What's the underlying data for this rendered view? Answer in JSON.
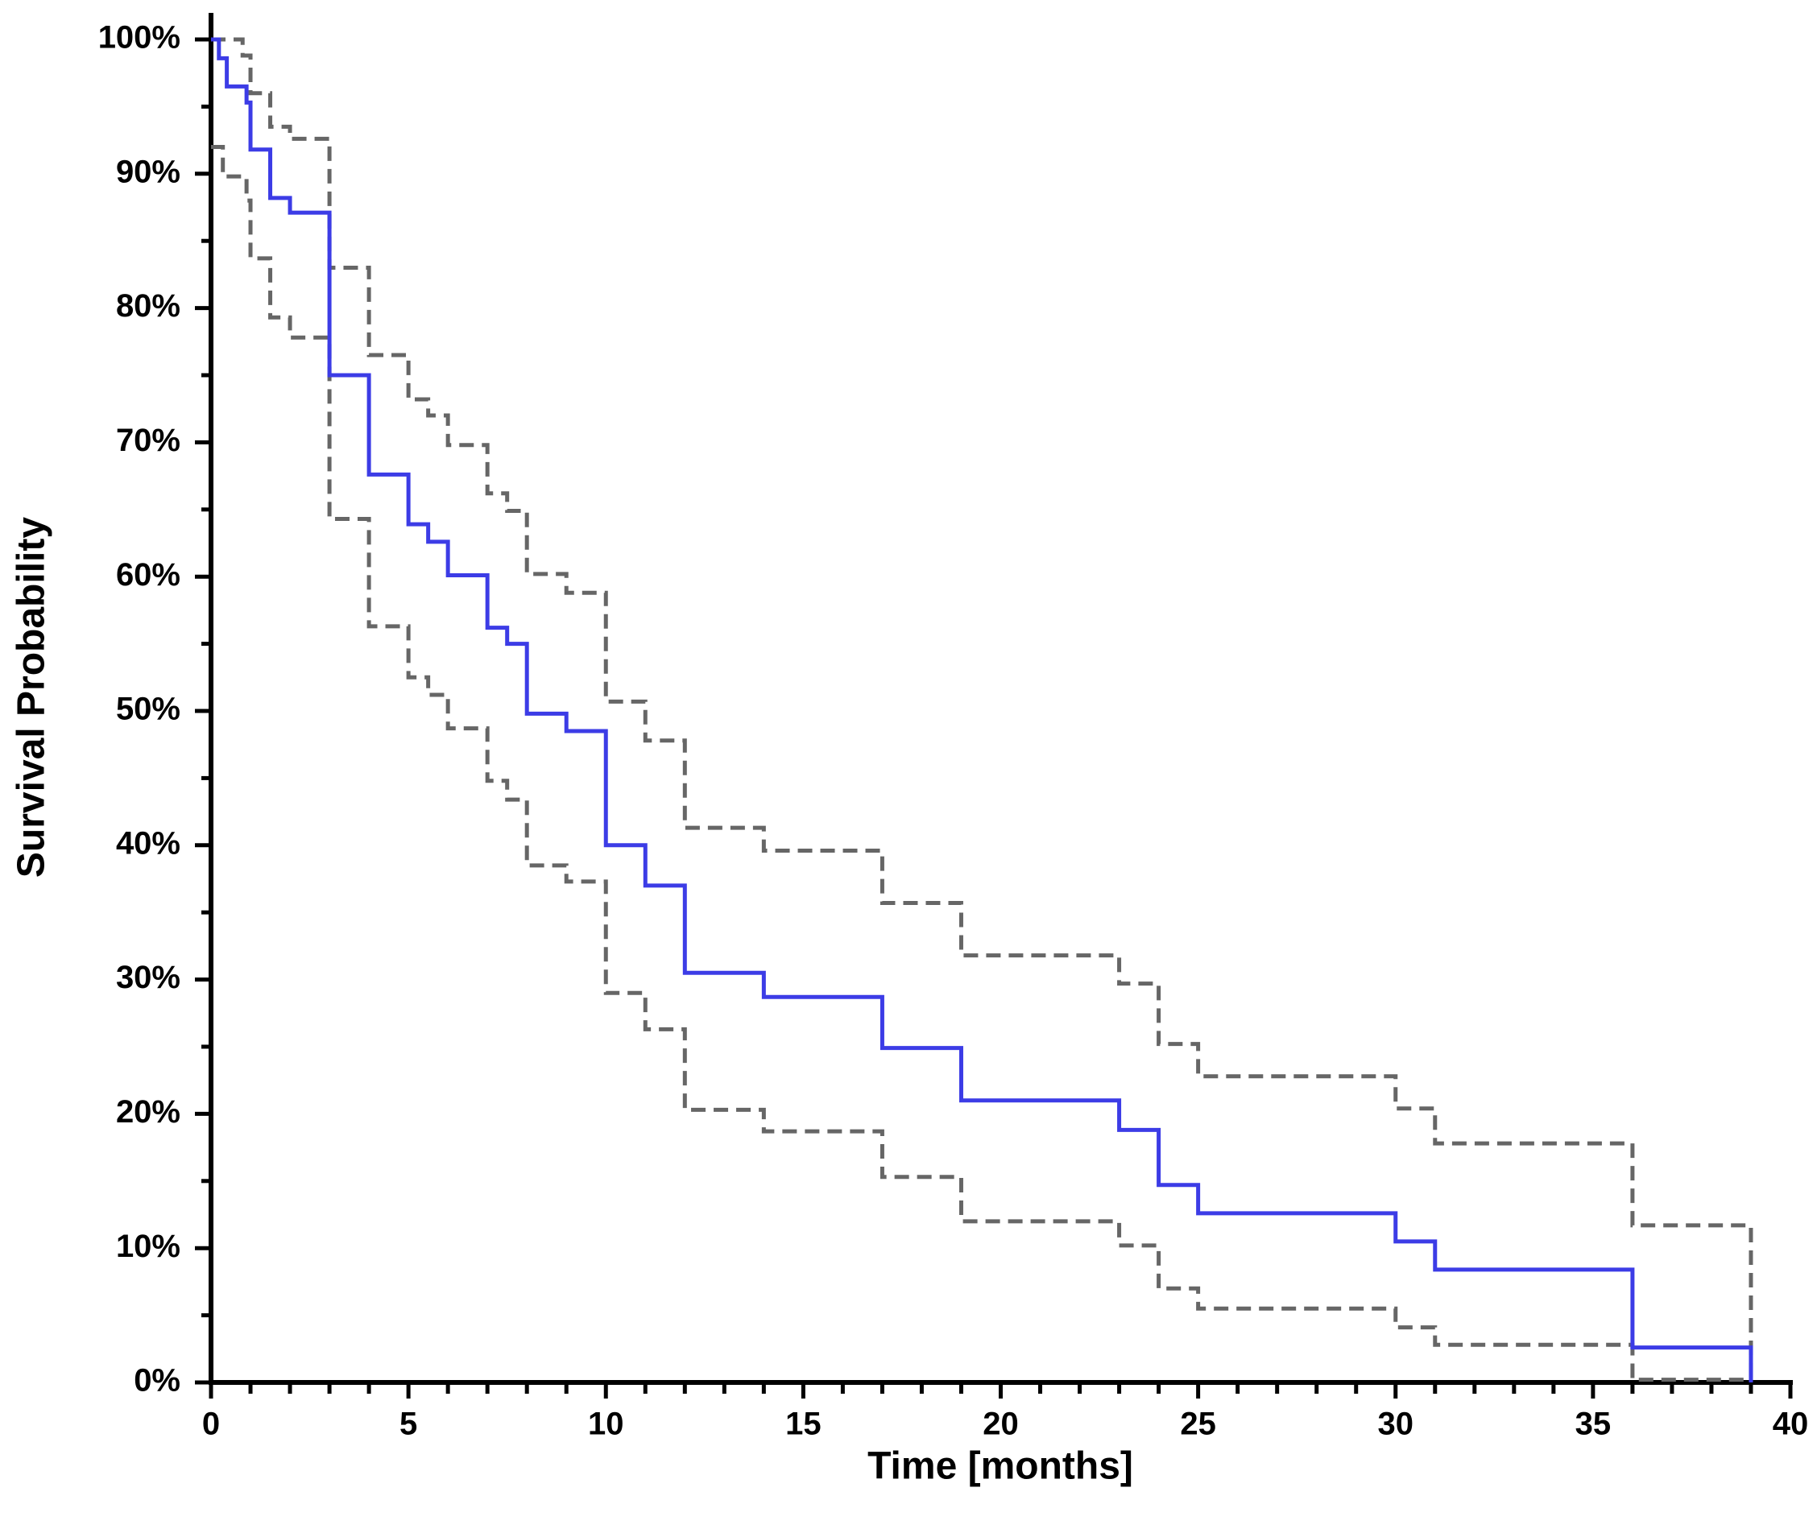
{
  "chart_data": {
    "type": "step",
    "x_label": "Time [months]",
    "y_label": "Survival Probability",
    "xlim": [
      0,
      40
    ],
    "ylim": [
      0,
      100
    ],
    "xticks": [
      0,
      5,
      10,
      15,
      20,
      25,
      30,
      35,
      40
    ],
    "xminorticks": [
      1,
      2,
      3,
      4,
      6,
      7,
      8,
      9,
      11,
      12,
      13,
      14,
      16,
      17,
      18,
      19,
      21,
      22,
      23,
      24,
      26,
      27,
      28,
      29,
      31,
      32,
      33,
      34,
      36,
      37,
      38,
      39
    ],
    "yticks": [
      {
        "value": 0,
        "label": "0%"
      },
      {
        "value": 10,
        "label": "10%"
      },
      {
        "value": 20,
        "label": "20%"
      },
      {
        "value": 30,
        "label": "30%"
      },
      {
        "value": 40,
        "label": "40%"
      },
      {
        "value": 50,
        "label": "50%"
      },
      {
        "value": 60,
        "label": "60%"
      },
      {
        "value": 70,
        "label": "70%"
      },
      {
        "value": 80,
        "label": "80%"
      },
      {
        "value": 90,
        "label": "90%"
      },
      {
        "value": 100,
        "label": "100%"
      }
    ],
    "yminorticks": [
      5,
      15,
      25,
      35,
      45,
      55,
      65,
      75,
      85,
      95
    ],
    "grid": false,
    "series": [
      {
        "color": "#3c3ce6",
        "dashed": false,
        "x": [
          0,
          0.2,
          0.4,
          0.9,
          1,
          1.5,
          2,
          3,
          4,
          5,
          5.5,
          6,
          7,
          7.5,
          8,
          9,
          10,
          11,
          12,
          14,
          17,
          19,
          23,
          24,
          25,
          30,
          31,
          36,
          39
        ],
        "values": [
          100,
          98.6,
          96.5,
          95.3,
          91.8,
          88.2,
          87.1,
          75,
          67.6,
          63.9,
          62.6,
          60.1,
          56.2,
          55,
          49.8,
          48.5,
          40,
          37,
          30.5,
          28.7,
          24.9,
          21,
          18.8,
          14.7,
          12.6,
          10.5,
          8.4,
          2.6,
          0
        ]
      },
      {
        "color": "#666666",
        "dashed": true,
        "x": [
          0,
          0.8,
          1,
          1.5,
          2,
          3,
          4,
          5,
          5.5,
          6,
          7,
          7.5,
          8,
          9,
          10,
          11,
          12,
          14,
          17,
          19,
          23,
          24,
          25,
          30,
          31,
          36,
          39
        ],
        "values": [
          100,
          98.8,
          96,
          93.5,
          92.6,
          83,
          76.5,
          73.2,
          72,
          69.8,
          66.2,
          64.9,
          60.2,
          58.8,
          50.7,
          47.8,
          41.3,
          39.6,
          35.7,
          31.8,
          29.7,
          25.2,
          22.8,
          20.4,
          17.8,
          11.7,
          0
        ]
      },
      {
        "color": "#666666",
        "dashed": true,
        "x": [
          0,
          0.3,
          0.9,
          1,
          1.5,
          2,
          3,
          4,
          5,
          5.5,
          6,
          7,
          7.5,
          8,
          9,
          10,
          11,
          12,
          14,
          17,
          19,
          23,
          24,
          25,
          30,
          31,
          36,
          39
        ],
        "values": [
          92,
          89.8,
          88,
          83.7,
          79.3,
          77.8,
          64.3,
          56.3,
          52.5,
          51.2,
          48.7,
          44.8,
          43.4,
          38.5,
          37.3,
          29,
          26.3,
          20.3,
          18.7,
          15.3,
          12,
          10.2,
          7,
          5.5,
          4.1,
          2.8,
          0.2,
          0.2
        ]
      }
    ]
  }
}
